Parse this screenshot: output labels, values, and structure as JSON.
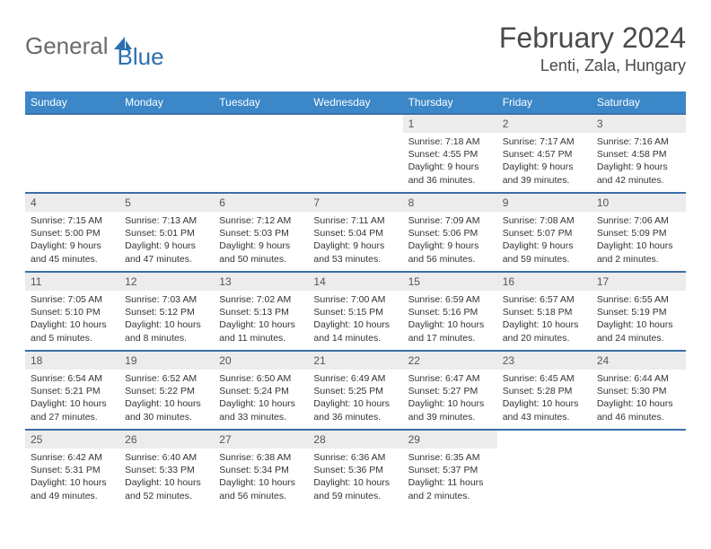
{
  "logo": {
    "text1": "General",
    "text2": "Blue"
  },
  "header": {
    "month_title": "February 2024",
    "location": "Lenti, Zala, Hungary"
  },
  "colors": {
    "header_bg": "#3b87c8",
    "header_text": "#ffffff",
    "row_border": "#3b6fa8",
    "date_bg": "#ececec",
    "logo_gray": "#6a6a6a",
    "logo_blue": "#2b6fb0"
  },
  "day_names": [
    "Sunday",
    "Monday",
    "Tuesday",
    "Wednesday",
    "Thursday",
    "Friday",
    "Saturday"
  ],
  "weeks": [
    [
      null,
      null,
      null,
      null,
      {
        "n": "1",
        "sr": "Sunrise: 7:18 AM",
        "ss": "Sunset: 4:55 PM",
        "d1": "Daylight: 9 hours",
        "d2": "and 36 minutes."
      },
      {
        "n": "2",
        "sr": "Sunrise: 7:17 AM",
        "ss": "Sunset: 4:57 PM",
        "d1": "Daylight: 9 hours",
        "d2": "and 39 minutes."
      },
      {
        "n": "3",
        "sr": "Sunrise: 7:16 AM",
        "ss": "Sunset: 4:58 PM",
        "d1": "Daylight: 9 hours",
        "d2": "and 42 minutes."
      }
    ],
    [
      {
        "n": "4",
        "sr": "Sunrise: 7:15 AM",
        "ss": "Sunset: 5:00 PM",
        "d1": "Daylight: 9 hours",
        "d2": "and 45 minutes."
      },
      {
        "n": "5",
        "sr": "Sunrise: 7:13 AM",
        "ss": "Sunset: 5:01 PM",
        "d1": "Daylight: 9 hours",
        "d2": "and 47 minutes."
      },
      {
        "n": "6",
        "sr": "Sunrise: 7:12 AM",
        "ss": "Sunset: 5:03 PM",
        "d1": "Daylight: 9 hours",
        "d2": "and 50 minutes."
      },
      {
        "n": "7",
        "sr": "Sunrise: 7:11 AM",
        "ss": "Sunset: 5:04 PM",
        "d1": "Daylight: 9 hours",
        "d2": "and 53 minutes."
      },
      {
        "n": "8",
        "sr": "Sunrise: 7:09 AM",
        "ss": "Sunset: 5:06 PM",
        "d1": "Daylight: 9 hours",
        "d2": "and 56 minutes."
      },
      {
        "n": "9",
        "sr": "Sunrise: 7:08 AM",
        "ss": "Sunset: 5:07 PM",
        "d1": "Daylight: 9 hours",
        "d2": "and 59 minutes."
      },
      {
        "n": "10",
        "sr": "Sunrise: 7:06 AM",
        "ss": "Sunset: 5:09 PM",
        "d1": "Daylight: 10 hours",
        "d2": "and 2 minutes."
      }
    ],
    [
      {
        "n": "11",
        "sr": "Sunrise: 7:05 AM",
        "ss": "Sunset: 5:10 PM",
        "d1": "Daylight: 10 hours",
        "d2": "and 5 minutes."
      },
      {
        "n": "12",
        "sr": "Sunrise: 7:03 AM",
        "ss": "Sunset: 5:12 PM",
        "d1": "Daylight: 10 hours",
        "d2": "and 8 minutes."
      },
      {
        "n": "13",
        "sr": "Sunrise: 7:02 AM",
        "ss": "Sunset: 5:13 PM",
        "d1": "Daylight: 10 hours",
        "d2": "and 11 minutes."
      },
      {
        "n": "14",
        "sr": "Sunrise: 7:00 AM",
        "ss": "Sunset: 5:15 PM",
        "d1": "Daylight: 10 hours",
        "d2": "and 14 minutes."
      },
      {
        "n": "15",
        "sr": "Sunrise: 6:59 AM",
        "ss": "Sunset: 5:16 PM",
        "d1": "Daylight: 10 hours",
        "d2": "and 17 minutes."
      },
      {
        "n": "16",
        "sr": "Sunrise: 6:57 AM",
        "ss": "Sunset: 5:18 PM",
        "d1": "Daylight: 10 hours",
        "d2": "and 20 minutes."
      },
      {
        "n": "17",
        "sr": "Sunrise: 6:55 AM",
        "ss": "Sunset: 5:19 PM",
        "d1": "Daylight: 10 hours",
        "d2": "and 24 minutes."
      }
    ],
    [
      {
        "n": "18",
        "sr": "Sunrise: 6:54 AM",
        "ss": "Sunset: 5:21 PM",
        "d1": "Daylight: 10 hours",
        "d2": "and 27 minutes."
      },
      {
        "n": "19",
        "sr": "Sunrise: 6:52 AM",
        "ss": "Sunset: 5:22 PM",
        "d1": "Daylight: 10 hours",
        "d2": "and 30 minutes."
      },
      {
        "n": "20",
        "sr": "Sunrise: 6:50 AM",
        "ss": "Sunset: 5:24 PM",
        "d1": "Daylight: 10 hours",
        "d2": "and 33 minutes."
      },
      {
        "n": "21",
        "sr": "Sunrise: 6:49 AM",
        "ss": "Sunset: 5:25 PM",
        "d1": "Daylight: 10 hours",
        "d2": "and 36 minutes."
      },
      {
        "n": "22",
        "sr": "Sunrise: 6:47 AM",
        "ss": "Sunset: 5:27 PM",
        "d1": "Daylight: 10 hours",
        "d2": "and 39 minutes."
      },
      {
        "n": "23",
        "sr": "Sunrise: 6:45 AM",
        "ss": "Sunset: 5:28 PM",
        "d1": "Daylight: 10 hours",
        "d2": "and 43 minutes."
      },
      {
        "n": "24",
        "sr": "Sunrise: 6:44 AM",
        "ss": "Sunset: 5:30 PM",
        "d1": "Daylight: 10 hours",
        "d2": "and 46 minutes."
      }
    ],
    [
      {
        "n": "25",
        "sr": "Sunrise: 6:42 AM",
        "ss": "Sunset: 5:31 PM",
        "d1": "Daylight: 10 hours",
        "d2": "and 49 minutes."
      },
      {
        "n": "26",
        "sr": "Sunrise: 6:40 AM",
        "ss": "Sunset: 5:33 PM",
        "d1": "Daylight: 10 hours",
        "d2": "and 52 minutes."
      },
      {
        "n": "27",
        "sr": "Sunrise: 6:38 AM",
        "ss": "Sunset: 5:34 PM",
        "d1": "Daylight: 10 hours",
        "d2": "and 56 minutes."
      },
      {
        "n": "28",
        "sr": "Sunrise: 6:36 AM",
        "ss": "Sunset: 5:36 PM",
        "d1": "Daylight: 10 hours",
        "d2": "and 59 minutes."
      },
      {
        "n": "29",
        "sr": "Sunrise: 6:35 AM",
        "ss": "Sunset: 5:37 PM",
        "d1": "Daylight: 11 hours",
        "d2": "and 2 minutes."
      },
      null,
      null
    ]
  ]
}
